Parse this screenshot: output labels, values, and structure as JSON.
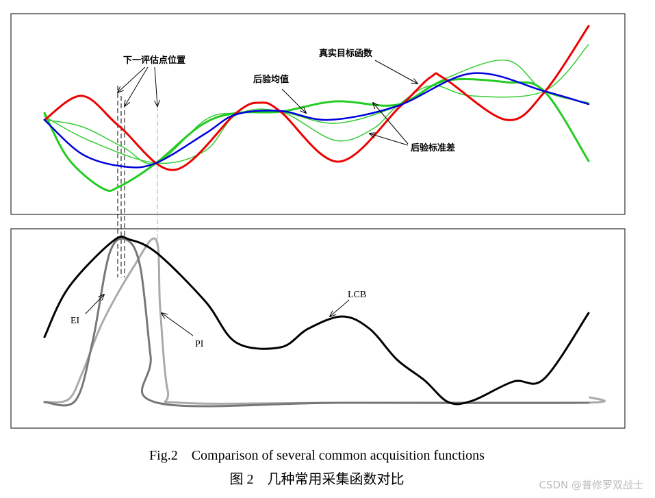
{
  "figure": {
    "top_panel": {
      "annotations": {
        "next_point": "下一评估点位置",
        "posterior_mean": "后验均值",
        "true_function": "真实目标函数",
        "posterior_std": "后验标准差"
      }
    },
    "bottom_panel": {
      "labels": {
        "ei": "EI",
        "pi": "PI",
        "lcb": "LCB"
      }
    },
    "caption_en": "Fig.2    Comparison of several common acquisition functions",
    "caption_zh": "图 2    几种常用采集函数对比",
    "watermark": "CSDN @普修罗双战士"
  }
}
